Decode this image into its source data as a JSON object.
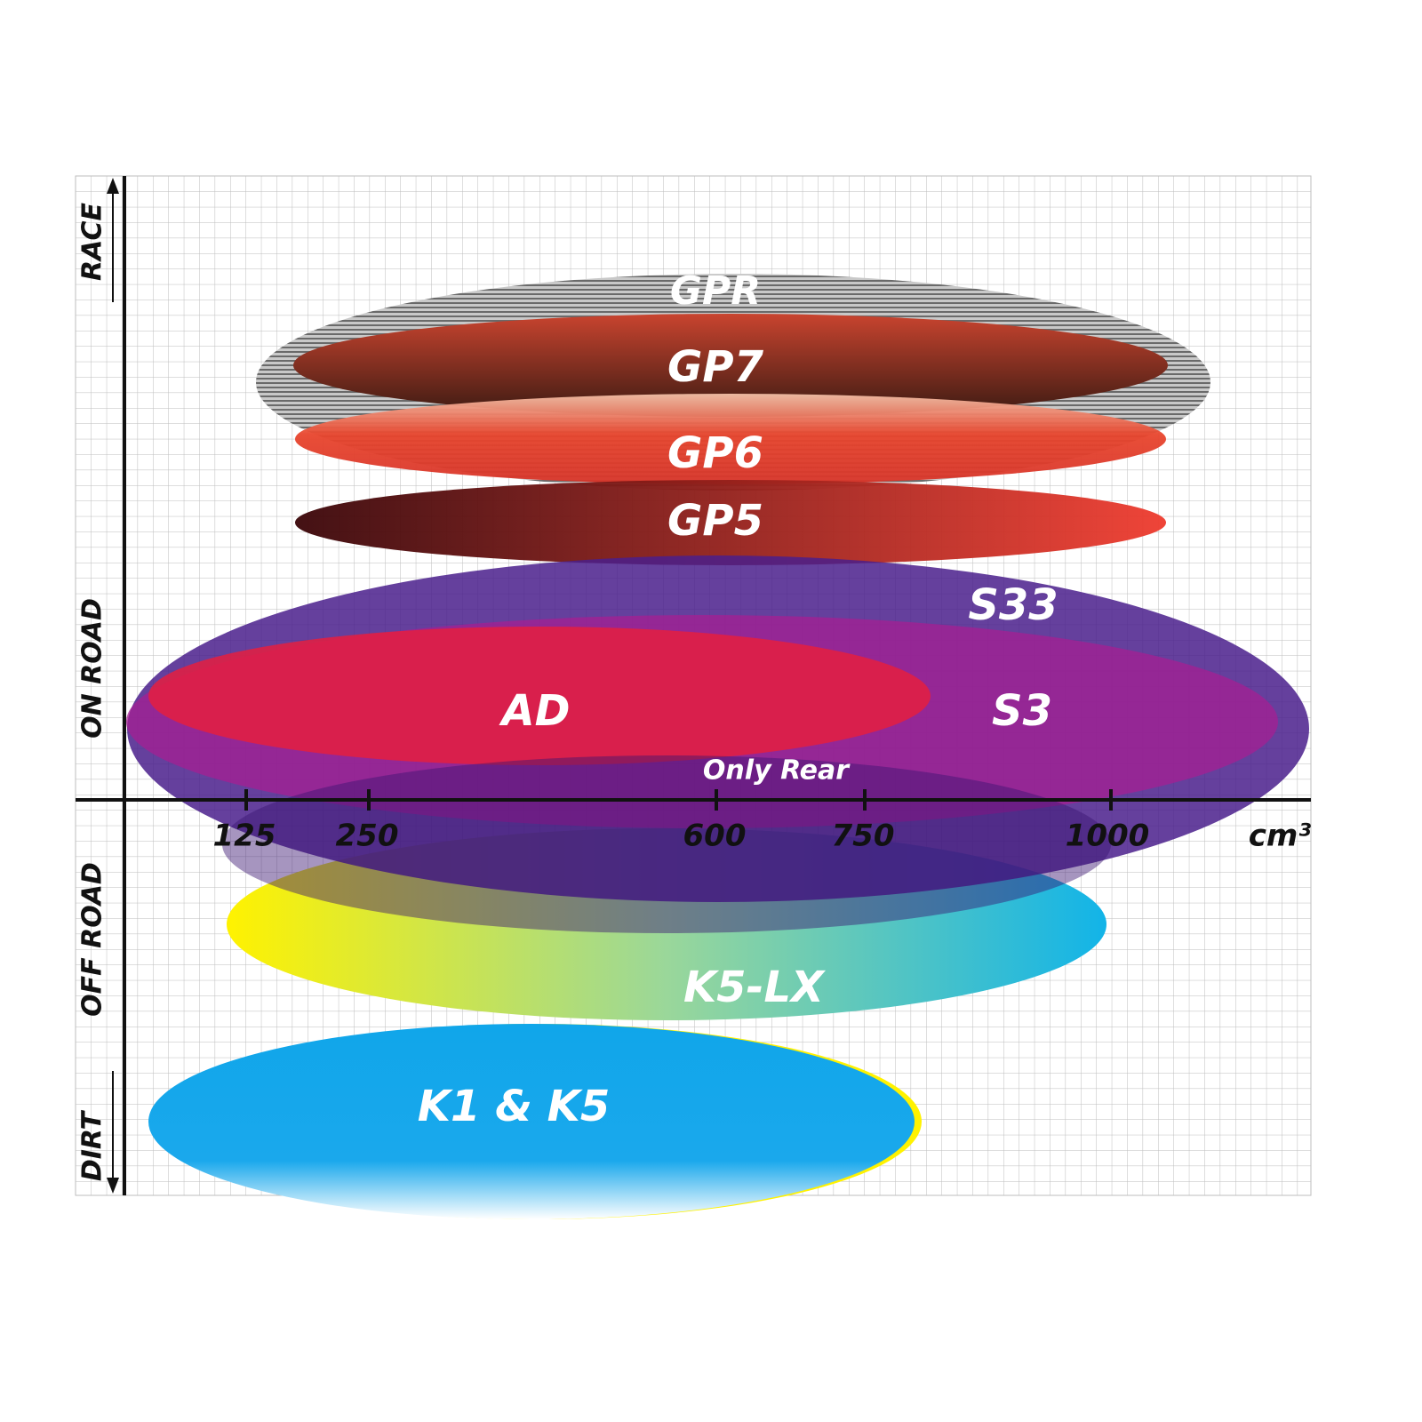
{
  "y_axis": {
    "labels": [
      "RACE",
      "ON ROAD",
      "OFF ROAD",
      "DIRT"
    ]
  },
  "x_axis": {
    "ticks": [
      "125",
      "250",
      "600",
      "750",
      "1000"
    ],
    "unit": "cm³"
  },
  "products": [
    {
      "label": "GPR"
    },
    {
      "label": "GP7"
    },
    {
      "label": "GP6"
    },
    {
      "label": "GP5"
    },
    {
      "label": "S33"
    },
    {
      "label": "AD"
    },
    {
      "label": "S3"
    },
    {
      "label": "Only Rear"
    },
    {
      "label": "K5-LX"
    },
    {
      "label": "K1 & K5"
    }
  ]
}
